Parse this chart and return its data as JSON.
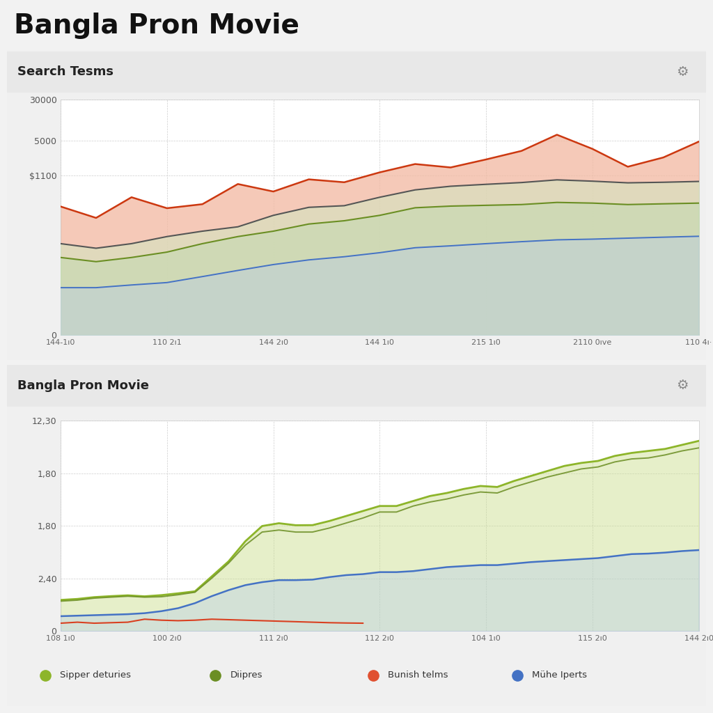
{
  "main_title": "Bangla Pron Movie",
  "chart1_title": "Search Tesms",
  "chart2_title": "Bangla Pron Movie",
  "chart1_xticks": [
    "144-1ı0",
    "110 2ı1",
    "144 2ı0",
    "144 1ı0",
    "215 1ı0",
    "2110 0ıve",
    "110 4ı·"
  ],
  "chart2_xticks": [
    "108 1ı0",
    "100 2ı0",
    "111 2ı0",
    "112 2ı0",
    "104 1ı0",
    "115 2ı0",
    "144 2ı0"
  ],
  "chart1_ytick_labels": [
    "0",
    "$1100",
    "5000",
    "30000"
  ],
  "chart2_ytick_labels": [
    "0",
    "2,40",
    "1,80",
    "1,80",
    "12,30"
  ],
  "chart1_red_line": [
    280,
    170,
    420,
    260,
    310,
    750,
    540,
    920,
    810,
    1250,
    1800,
    1550,
    2200,
    3200,
    6500,
    3500,
    1600,
    2400,
    4800
  ],
  "chart1_dark_line": [
    55,
    45,
    55,
    75,
    95,
    115,
    190,
    270,
    290,
    420,
    580,
    680,
    740,
    800,
    900,
    850,
    790,
    810,
    840
  ],
  "chart1_green_line": [
    30,
    25,
    30,
    38,
    55,
    75,
    95,
    130,
    150,
    190,
    265,
    285,
    295,
    305,
    335,
    325,
    305,
    315,
    325
  ],
  "chart1_blue_line": [
    8,
    8,
    9,
    10,
    13,
    17,
    22,
    27,
    31,
    37,
    46,
    50,
    55,
    60,
    65,
    67,
    70,
    73,
    76
  ],
  "chart2_lime_line": [
    310,
    320,
    338,
    348,
    356,
    346,
    358,
    376,
    396,
    545,
    695,
    896,
    1048,
    1076,
    1056,
    1057,
    1098,
    1148,
    1198,
    1248,
    1248,
    1298,
    1348,
    1378,
    1418,
    1448,
    1438,
    1498,
    1548,
    1598,
    1648,
    1678,
    1698,
    1748,
    1778,
    1798,
    1818,
    1858,
    1898
  ],
  "chart2_olive_line": [
    298,
    308,
    328,
    338,
    347,
    338,
    342,
    362,
    387,
    527,
    677,
    857,
    988,
    1008,
    988,
    988,
    1028,
    1078,
    1128,
    1188,
    1188,
    1248,
    1288,
    1318,
    1358,
    1388,
    1378,
    1438,
    1488,
    1538,
    1578,
    1618,
    1638,
    1688,
    1718,
    1728,
    1758,
    1798,
    1828
  ],
  "chart2_red_line": [
    78,
    88,
    78,
    83,
    88,
    118,
    108,
    103,
    108,
    118,
    113,
    108,
    103,
    98,
    93,
    88,
    83,
    80,
    78
  ],
  "chart2_blue_line": [
    148,
    153,
    158,
    163,
    168,
    178,
    198,
    228,
    278,
    348,
    408,
    458,
    488,
    508,
    508,
    513,
    538,
    558,
    568,
    588,
    588,
    598,
    618,
    638,
    648,
    658,
    658,
    673,
    688,
    698,
    708,
    718,
    728,
    748,
    768,
    773,
    783,
    798,
    808
  ],
  "legend_items": [
    "Sipper deturies",
    "Diipres",
    "Bunish telms",
    "Mühe Iperts"
  ],
  "legend_colors": [
    "#8db52a",
    "#6b8e23",
    "#e05030",
    "#4472c4"
  ],
  "page_bg": "#f2f2f2",
  "panel_bg": "#f0f0f0",
  "chart_bg": "#ffffff",
  "header_bg": "#e8e8e8",
  "gear_symbol": "⚙"
}
